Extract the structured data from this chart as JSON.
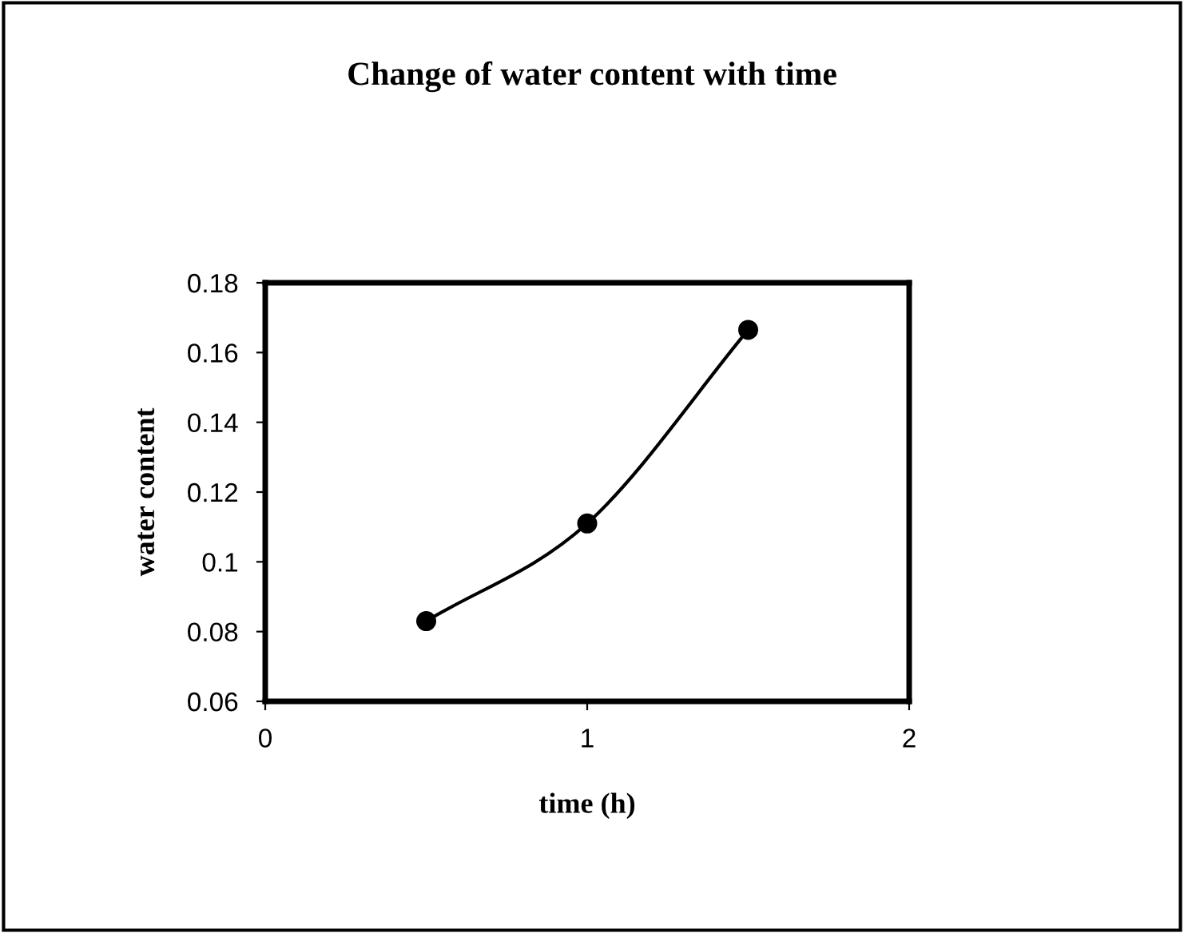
{
  "chart_data": {
    "type": "line",
    "title": "Change of water content with time",
    "xlabel": "time (h)",
    "ylabel": "water content",
    "x": [
      0.5,
      1,
      1.5
    ],
    "series": [
      {
        "color": "#000000",
        "values": [
          0.083,
          0.111,
          0.1665
        ]
      }
    ],
    "xlim": [
      0,
      2
    ],
    "xticks": [
      0,
      1,
      2
    ],
    "ylim": [
      0.06,
      0.18
    ],
    "yticks": [
      0.06,
      0.08,
      0.1,
      0.12,
      0.14,
      0.16,
      0.18
    ],
    "marker": "circle",
    "line_style": "solid",
    "grid": false,
    "legend": false
  }
}
